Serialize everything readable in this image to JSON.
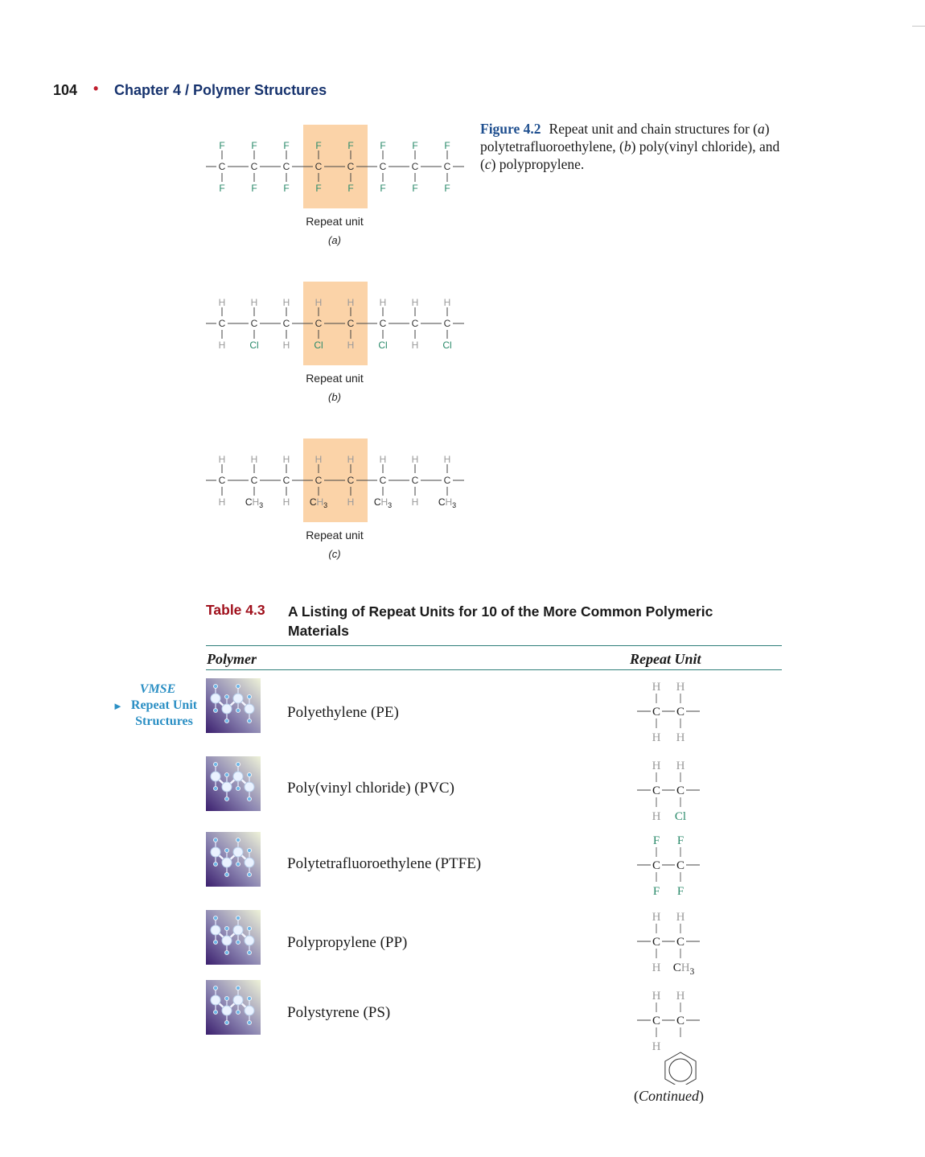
{
  "header": {
    "page_number": "104",
    "bullet": "•",
    "chapter": "Chapter 4  /  Polymer Structures"
  },
  "figure": {
    "label": "Figure 4.2",
    "caption_parts": [
      "Repeat unit and chain structures for (",
      "a",
      ") polytetrafluoroethylene, (",
      "b",
      ") poly(vinyl chloride), and (",
      "c",
      ") polypropylene."
    ],
    "panels": [
      {
        "letter": "(a)",
        "repeat_label": "Repeat unit",
        "backbone": "C",
        "top": [
          "F",
          "F",
          "F",
          "F",
          "F",
          "F",
          "F",
          "F"
        ],
        "bottom": [
          "F",
          "F",
          "F",
          "F",
          "F",
          "F",
          "F",
          "F"
        ]
      },
      {
        "letter": "(b)",
        "repeat_label": "Repeat unit",
        "backbone": "C",
        "top": [
          "H",
          "H",
          "H",
          "H",
          "H",
          "H",
          "H",
          "H"
        ],
        "bottom": [
          "H",
          "Cl",
          "H",
          "Cl",
          "H",
          "Cl",
          "H",
          "Cl"
        ]
      },
      {
        "letter": "(c)",
        "repeat_label": "Repeat unit",
        "backbone": "C",
        "top": [
          "H",
          "H",
          "H",
          "H",
          "H",
          "H",
          "H",
          "H"
        ],
        "bottom": [
          "H",
          "CH3",
          "H",
          "CH3",
          "H",
          "CH3",
          "H",
          "CH3"
        ]
      }
    ]
  },
  "table": {
    "label": "Table 4.3",
    "title": "A Listing of Repeat Units for 10 of the More Common Polymeric Materials",
    "col_polymer": "Polymer",
    "col_repeat": "Repeat Unit",
    "rows": [
      {
        "name": "Polyethylene (PE)",
        "top": [
          "H",
          "H"
        ],
        "bottom": [
          "H",
          "H"
        ]
      },
      {
        "name": "Poly(vinyl chloride) (PVC)",
        "top": [
          "H",
          "H"
        ],
        "bottom": [
          "H",
          "Cl"
        ]
      },
      {
        "name": "Polytetrafluoroethylene (PTFE)",
        "top": [
          "F",
          "F"
        ],
        "bottom": [
          "F",
          "F"
        ]
      },
      {
        "name": "Polypropylene (PP)",
        "top": [
          "H",
          "H"
        ],
        "bottom": [
          "H",
          "CH3"
        ]
      },
      {
        "name": "Polystyrene (PS)",
        "top": [
          "H",
          "H"
        ],
        "bottom": [
          "H",
          ""
        ]
      }
    ],
    "continued_open": "(",
    "continued_word": "Continued",
    "continued_close": ")"
  },
  "sidebar": {
    "vmse": "VMSE",
    "link_line1": "Repeat Unit",
    "link_line2": "Structures"
  },
  "colors": {
    "header_blue": "#17336e",
    "bullet_red": "#c01f2f",
    "figure_label_blue": "#1f4f8f",
    "table_label_red": "#a0101c",
    "rule_teal": "#2f7f7a",
    "vmse_cyan": "#2b8fc4",
    "highlight_orange": "#fbd3a8",
    "atom_green": "#2a8a6a",
    "atom_gray": "#9a9a9a"
  },
  "icons": {
    "vmse_arrow": "right-triangle-icon",
    "thumbnail": "molecule-thumbnail-icon"
  }
}
